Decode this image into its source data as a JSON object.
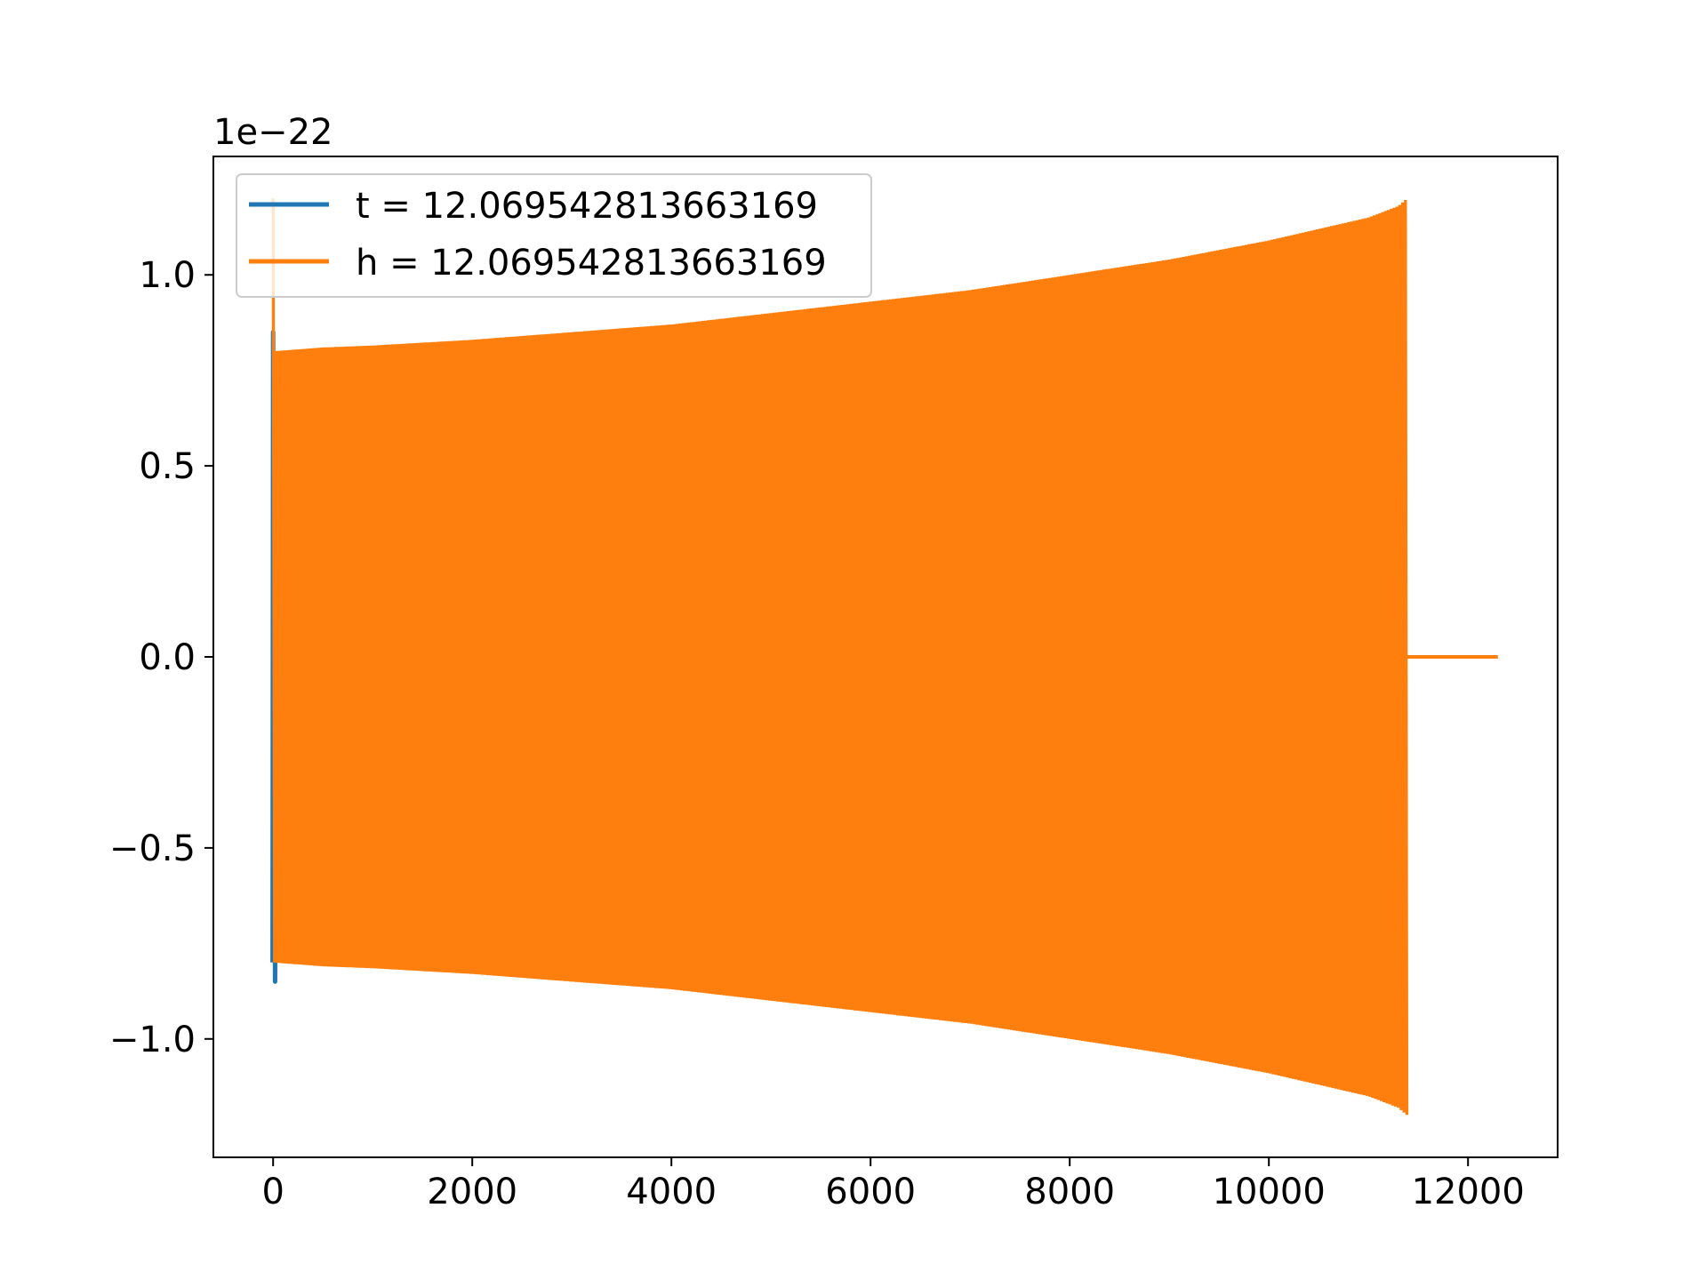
{
  "chart_data": {
    "type": "line",
    "title": "",
    "xlabel": "",
    "ylabel": "",
    "y_offset_label": "1e−22",
    "xlim": [
      -600,
      12900
    ],
    "ylim": [
      -1.31,
      1.31
    ],
    "x_ticks": [
      0,
      2000,
      4000,
      6000,
      8000,
      10000,
      12000
    ],
    "x_tick_labels": [
      "0",
      "2000",
      "4000",
      "6000",
      "8000",
      "10000",
      "12000"
    ],
    "y_ticks": [
      1.0,
      0.5,
      0.0,
      -0.5,
      -1.0
    ],
    "y_tick_labels": [
      "1.0",
      "0.5",
      "0.0",
      "−0.5",
      "−1.0"
    ],
    "grid": false,
    "legend_position": "upper-left",
    "series": [
      {
        "name": "t = 12.069542813663169",
        "color": "#1f77b4",
        "description_points": [
          [
            -5,
            -0.8
          ],
          [
            0,
            0.85
          ],
          [
            20,
            -0.85
          ],
          [
            40,
            0.5
          ],
          [
            60,
            -0.4
          ]
        ]
      },
      {
        "name": "h = 12.069542813663169",
        "color": "#ff7f0e",
        "envelope": {
          "x": [
            0,
            500,
            1000,
            2000,
            3000,
            4000,
            5000,
            6000,
            7000,
            8000,
            9000,
            10000,
            10500,
            11000,
            11300,
            11390
          ],
          "amplitude": [
            0.8,
            0.81,
            0.815,
            0.83,
            0.85,
            0.87,
            0.9,
            0.93,
            0.96,
            1.0,
            1.04,
            1.09,
            1.12,
            1.15,
            1.18,
            1.2
          ]
        },
        "end_x": 11390,
        "tail": {
          "x_start": 11390,
          "x_end": 12300,
          "value": 0.0
        }
      }
    ]
  }
}
